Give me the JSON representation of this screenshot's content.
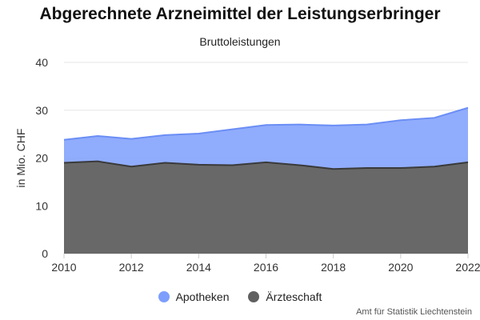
{
  "chart_data": {
    "type": "area",
    "title": "Abgerechnete Arzneimittel der Leistungserbringer",
    "subtitle": "Bruttoleistungen",
    "xlabel": "",
    "ylabel": "in Mio. CHF",
    "stacked": true,
    "x": [
      2010,
      2011,
      2012,
      2013,
      2014,
      2015,
      2016,
      2017,
      2018,
      2019,
      2020,
      2021,
      2022
    ],
    "xticks": [
      2010,
      2012,
      2014,
      2016,
      2018,
      2020,
      2022
    ],
    "ylim": [
      0,
      40
    ],
    "yticks": [
      0,
      10,
      20,
      30,
      40
    ],
    "grid": true,
    "legend_position": "bottom",
    "series": [
      {
        "name": "Ärzteschaft",
        "color": "#606060",
        "values": [
          19.0,
          19.3,
          18.2,
          19.0,
          18.6,
          18.5,
          19.1,
          18.5,
          17.7,
          17.9,
          17.9,
          18.2,
          19.1
        ]
      },
      {
        "name": "Apotheken",
        "color": "#7d9efc",
        "values": [
          4.8,
          5.3,
          5.8,
          5.8,
          6.5,
          7.5,
          7.8,
          8.5,
          9.1,
          9.1,
          10.0,
          10.2,
          11.4
        ]
      }
    ],
    "credits": "Amt für Statistik Liechtenstein"
  }
}
